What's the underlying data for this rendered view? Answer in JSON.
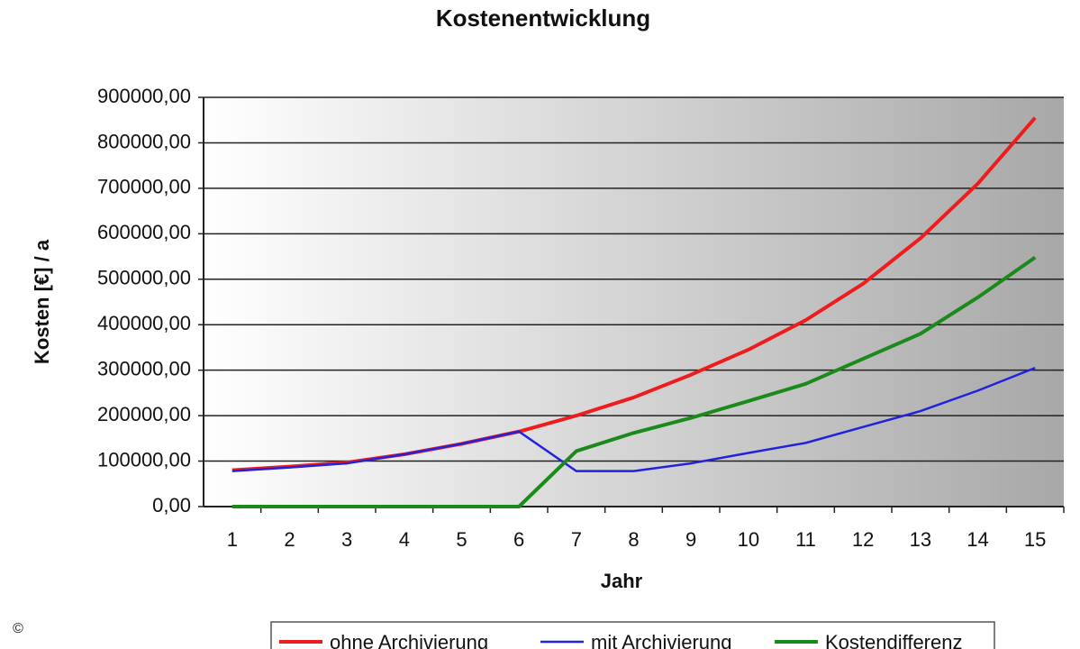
{
  "chart_data": {
    "type": "line",
    "title": "Kostenentwicklung",
    "x_label": "Jahr",
    "y_label": "Kosten [€] / a",
    "copyright": "©",
    "categories": [
      "1",
      "2",
      "3",
      "4",
      "5",
      "6",
      "7",
      "8",
      "9",
      "10",
      "11",
      "12",
      "13",
      "14",
      "15"
    ],
    "series": [
      {
        "name": "ohne Archivierung",
        "color": "#ee1c1c",
        "width": 4,
        "values": [
          80000,
          88000,
          97000,
          115000,
          138000,
          165000,
          200000,
          240000,
          290000,
          345000,
          410000,
          490000,
          590000,
          710000,
          855000
        ]
      },
      {
        "name": "mit Archivierung",
        "color": "#2222dd",
        "width": 2.5,
        "values": [
          78000,
          86000,
          95000,
          115000,
          138000,
          165000,
          78000,
          78000,
          95000,
          118000,
          140000,
          175000,
          210000,
          255000,
          305000
        ]
      },
      {
        "name": "Kostendifferenz",
        "color": "#1a8a1a",
        "width": 4,
        "values": [
          0,
          0,
          0,
          0,
          0,
          0,
          122000,
          162000,
          195000,
          232000,
          270000,
          325000,
          380000,
          460000,
          548000
        ]
      }
    ],
    "ylim": [
      0,
      900000
    ],
    "yticks": [
      {
        "value": 0,
        "label": "0,00"
      },
      {
        "value": 100000,
        "label": "100000,00"
      },
      {
        "value": 200000,
        "label": "200000,00"
      },
      {
        "value": 300000,
        "label": "300000,00"
      },
      {
        "value": 400000,
        "label": "400000,00"
      },
      {
        "value": 500000,
        "label": "500000,00"
      },
      {
        "value": 600000,
        "label": "600000,00"
      },
      {
        "value": 700000,
        "label": "700000,00"
      },
      {
        "value": 800000,
        "label": "800000,00"
      },
      {
        "value": 900000,
        "label": "900000,00"
      }
    ],
    "grid": true,
    "legend": "bottom"
  }
}
